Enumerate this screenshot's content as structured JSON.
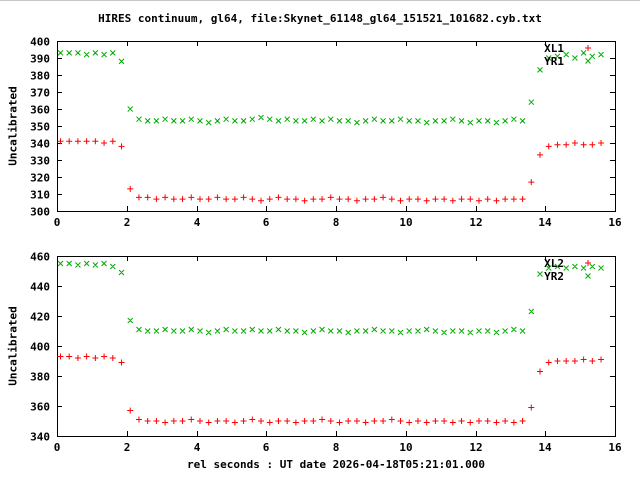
{
  "title": "HIRES continuum, gl64, file:Skynet_61148_gl64_151521_101682.cyb.txt",
  "xlabel": "rel seconds : UT date 2026-04-18T05:21:01.000",
  "colors": {
    "background": "#ffffff",
    "axis": "#000000",
    "text": "#000000",
    "red_series": "#ff0000",
    "green_series": "#00aa00"
  },
  "chart_data": [
    {
      "type": "scatter",
      "ylabel": "Uncalibrated",
      "xlim": [
        0,
        16
      ],
      "ylim": [
        300,
        400
      ],
      "xticks": [
        0,
        2,
        4,
        6,
        8,
        10,
        12,
        14,
        16
      ],
      "yticks": [
        300,
        310,
        320,
        330,
        340,
        350,
        360,
        370,
        380,
        390,
        400
      ],
      "grid": false,
      "legend_position": "top-right",
      "x": [
        0.1,
        0.35,
        0.6,
        0.85,
        1.1,
        1.35,
        1.6,
        1.85,
        2.1,
        2.35,
        2.6,
        2.85,
        3.1,
        3.35,
        3.6,
        3.85,
        4.1,
        4.35,
        4.6,
        4.85,
        5.1,
        5.35,
        5.6,
        5.85,
        6.1,
        6.35,
        6.6,
        6.85,
        7.1,
        7.35,
        7.6,
        7.85,
        8.1,
        8.35,
        8.6,
        8.85,
        9.1,
        9.35,
        9.6,
        9.85,
        10.1,
        10.35,
        10.6,
        10.85,
        11.1,
        11.35,
        11.6,
        11.85,
        12.1,
        12.35,
        12.6,
        12.85,
        13.1,
        13.35,
        13.6,
        13.85,
        14.1,
        14.35,
        14.6,
        14.85,
        15.1,
        15.35,
        15.6
      ],
      "series": [
        {
          "name": "XL1",
          "marker": "plus",
          "color": "#ff0000",
          "values": [
            341,
            341,
            341,
            341,
            341,
            340,
            341,
            338,
            313,
            308,
            308,
            307,
            308,
            307,
            307,
            308,
            307,
            307,
            308,
            307,
            307,
            308,
            307,
            306,
            307,
            308,
            307,
            307,
            306,
            307,
            307,
            308,
            307,
            307,
            306,
            307,
            307,
            308,
            307,
            306,
            307,
            307,
            306,
            307,
            307,
            306,
            307,
            307,
            306,
            307,
            306,
            307,
            307,
            307,
            317,
            333,
            338,
            339,
            339,
            340,
            339,
            339,
            340
          ]
        },
        {
          "name": "YR1",
          "marker": "cross",
          "color": "#00aa00",
          "values": [
            393,
            393,
            393,
            392,
            393,
            392,
            393,
            388,
            360,
            354,
            353,
            353,
            354,
            353,
            353,
            354,
            353,
            352,
            353,
            354,
            353,
            353,
            354,
            355,
            354,
            353,
            354,
            353,
            353,
            354,
            353,
            354,
            353,
            353,
            352,
            353,
            354,
            353,
            353,
            354,
            353,
            353,
            352,
            353,
            353,
            354,
            353,
            352,
            353,
            353,
            352,
            353,
            354,
            353,
            364,
            383,
            390,
            391,
            392,
            390,
            393,
            391,
            392
          ]
        }
      ]
    },
    {
      "type": "scatter",
      "ylabel": "Uncalibrated",
      "xlim": [
        0,
        16
      ],
      "ylim": [
        340,
        460
      ],
      "xticks": [
        0,
        2,
        4,
        6,
        8,
        10,
        12,
        14,
        16
      ],
      "yticks": [
        340,
        360,
        380,
        400,
        420,
        440,
        460
      ],
      "grid": false,
      "legend_position": "top-right",
      "x": [
        0.1,
        0.35,
        0.6,
        0.85,
        1.1,
        1.35,
        1.6,
        1.85,
        2.1,
        2.35,
        2.6,
        2.85,
        3.1,
        3.35,
        3.6,
        3.85,
        4.1,
        4.35,
        4.6,
        4.85,
        5.1,
        5.35,
        5.6,
        5.85,
        6.1,
        6.35,
        6.6,
        6.85,
        7.1,
        7.35,
        7.6,
        7.85,
        8.1,
        8.35,
        8.6,
        8.85,
        9.1,
        9.35,
        9.6,
        9.85,
        10.1,
        10.35,
        10.6,
        10.85,
        11.1,
        11.35,
        11.6,
        11.85,
        12.1,
        12.35,
        12.6,
        12.85,
        13.1,
        13.35,
        13.6,
        13.85,
        14.1,
        14.35,
        14.6,
        14.85,
        15.1,
        15.35,
        15.6
      ],
      "series": [
        {
          "name": "XL2",
          "marker": "plus",
          "color": "#ff0000",
          "values": [
            393,
            393,
            392,
            393,
            392,
            393,
            392,
            389,
            357,
            351,
            350,
            350,
            349,
            350,
            350,
            351,
            350,
            349,
            350,
            350,
            349,
            350,
            351,
            350,
            349,
            350,
            350,
            349,
            350,
            350,
            351,
            350,
            349,
            350,
            350,
            349,
            350,
            350,
            351,
            350,
            349,
            350,
            349,
            350,
            350,
            349,
            350,
            349,
            350,
            350,
            349,
            350,
            349,
            350,
            359,
            383,
            389,
            390,
            390,
            390,
            391,
            390,
            391
          ]
        },
        {
          "name": "YR2",
          "marker": "cross",
          "color": "#00aa00",
          "values": [
            455,
            455,
            454,
            455,
            454,
            455,
            453,
            449,
            417,
            411,
            410,
            410,
            411,
            410,
            410,
            411,
            410,
            409,
            410,
            411,
            410,
            410,
            411,
            410,
            410,
            411,
            410,
            410,
            409,
            410,
            411,
            410,
            410,
            409,
            410,
            410,
            411,
            410,
            410,
            409,
            410,
            410,
            411,
            410,
            409,
            410,
            410,
            409,
            410,
            410,
            409,
            410,
            411,
            410,
            423,
            448,
            452,
            453,
            452,
            453,
            452,
            453,
            452
          ]
        }
      ]
    }
  ]
}
